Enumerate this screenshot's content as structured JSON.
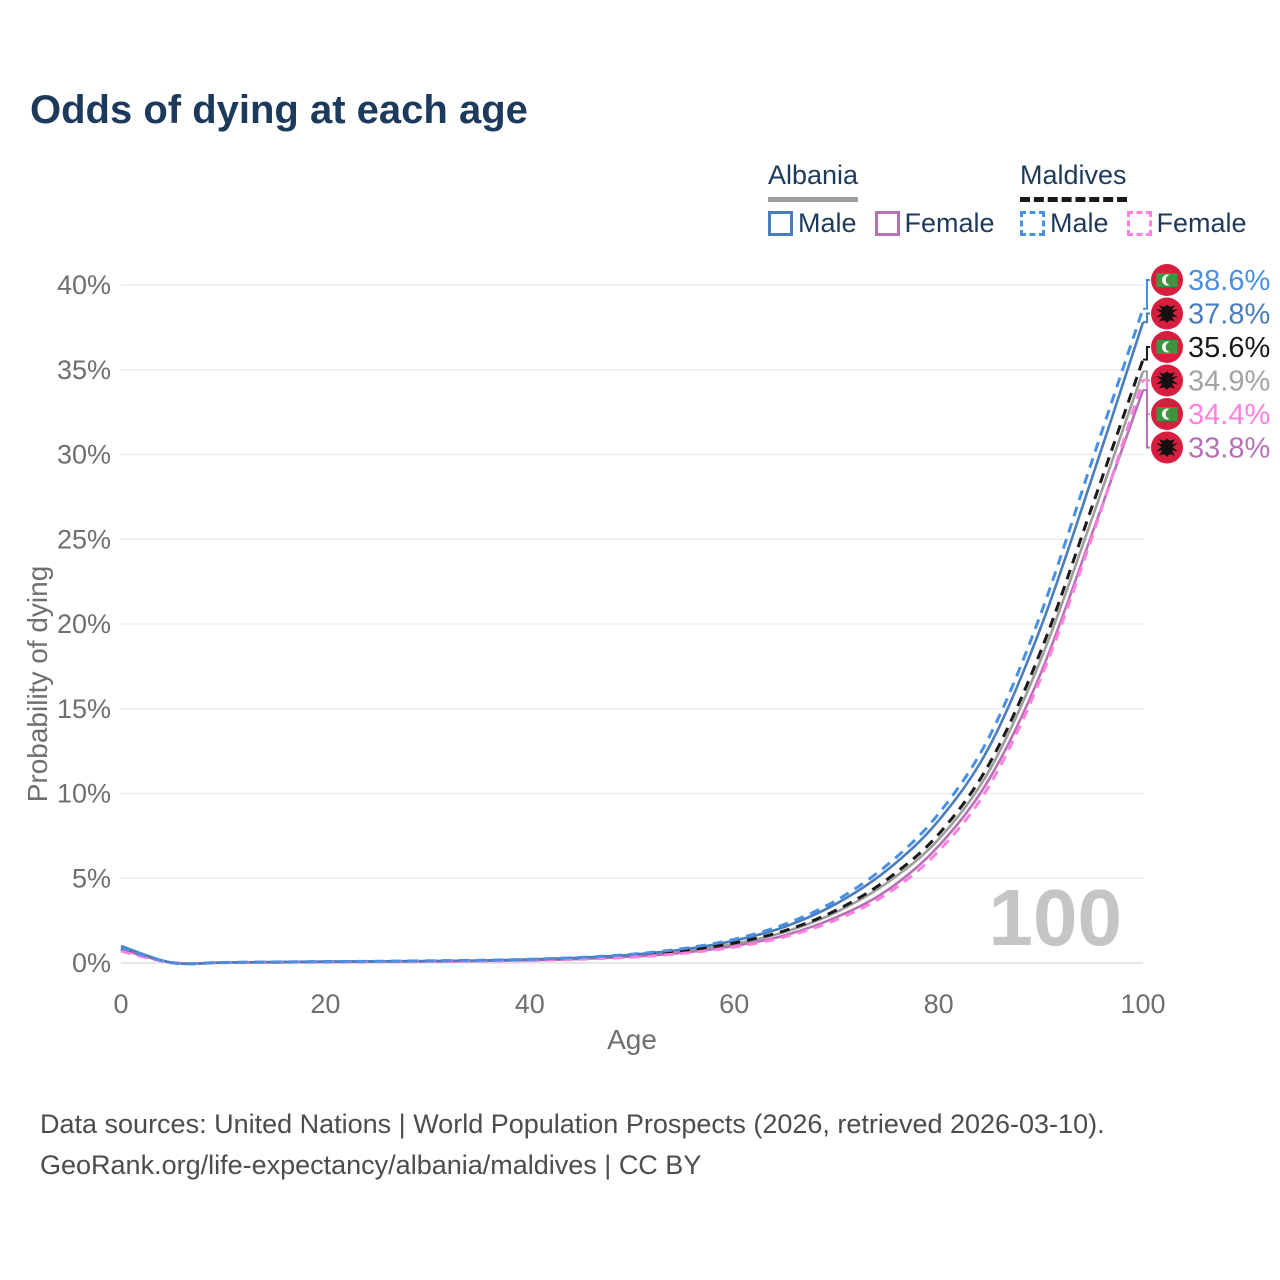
{
  "title": "Odds of dying at each age",
  "legend": {
    "groups": [
      {
        "name": "Albania",
        "line_style": "solid",
        "underline_color": "#9e9e9e",
        "items": [
          {
            "label": "Male",
            "color": "#4a7dbb"
          },
          {
            "label": "Female",
            "color": "#b671b6"
          }
        ]
      },
      {
        "name": "Maldives",
        "line_style": "dashed",
        "underline_color": "#1a1a1a",
        "items": [
          {
            "label": "Male",
            "color": "#4a90e2"
          },
          {
            "label": "Female",
            "color": "#ff80e0"
          }
        ]
      }
    ]
  },
  "chart_data": {
    "type": "line",
    "title": "Odds of dying at each age",
    "xlabel": "Age",
    "ylabel": "Probability of dying",
    "xlim": [
      0,
      100
    ],
    "ylim_percent": [
      0,
      40
    ],
    "x_ticks": [
      0,
      20,
      40,
      60,
      80,
      100
    ],
    "y_ticks_percent": [
      0,
      5,
      10,
      15,
      20,
      25,
      30,
      35,
      40
    ],
    "grid": "horizontal",
    "legend_position": "top-right",
    "x": [
      0,
      5,
      10,
      15,
      20,
      25,
      30,
      35,
      40,
      45,
      50,
      55,
      60,
      65,
      70,
      75,
      80,
      85,
      90,
      95,
      100
    ],
    "series": [
      {
        "name": "Albania Both sexes",
        "country": "albania",
        "sex": "both",
        "dash": false,
        "color": "#9e9e9e",
        "label_color": "#a3a3a3",
        "end_label": "34.9%",
        "values": [
          0.9,
          0.02,
          0.03,
          0.05,
          0.07,
          0.09,
          0.1,
          0.13,
          0.18,
          0.27,
          0.42,
          0.69,
          1.13,
          1.84,
          3.0,
          4.75,
          7.3,
          11.4,
          17.9,
          26.2,
          34.9
        ]
      },
      {
        "name": "Albania Female",
        "country": "albania",
        "sex": "female",
        "dash": false,
        "color": "#b671b6",
        "label_color": "#b671b6",
        "end_label": "33.8%",
        "values": [
          0.8,
          0.015,
          0.02,
          0.04,
          0.06,
          0.08,
          0.09,
          0.12,
          0.16,
          0.24,
          0.38,
          0.61,
          1.0,
          1.64,
          2.7,
          4.3,
          6.9,
          10.9,
          17.1,
          25.3,
          33.8
        ]
      },
      {
        "name": "Albania Male",
        "country": "albania",
        "sex": "male",
        "dash": false,
        "color": "#4a7dbb",
        "label_color": "#4a7dbb",
        "end_label": "37.8%",
        "values": [
          1.0,
          0.02,
          0.03,
          0.06,
          0.08,
          0.1,
          0.12,
          0.15,
          0.21,
          0.31,
          0.49,
          0.8,
          1.32,
          2.15,
          3.5,
          5.5,
          8.4,
          12.8,
          19.8,
          28.6,
          37.8
        ]
      },
      {
        "name": "Maldives Both sexes",
        "country": "maldives",
        "sex": "both",
        "dash": true,
        "color": "#1a1a1a",
        "label_color": "#1a1a1a",
        "end_label": "35.6%",
        "values": [
          0.8,
          0.02,
          0.03,
          0.05,
          0.07,
          0.09,
          0.11,
          0.14,
          0.19,
          0.28,
          0.44,
          0.72,
          1.18,
          1.92,
          3.12,
          4.95,
          7.6,
          11.8,
          18.4,
          26.9,
          35.6
        ]
      },
      {
        "name": "Maldives Female",
        "country": "maldives",
        "sex": "female",
        "dash": true,
        "color": "#ff80e0",
        "label_color": "#ff80e0",
        "end_label": "34.4%",
        "values": [
          0.7,
          0.015,
          0.02,
          0.04,
          0.05,
          0.07,
          0.09,
          0.11,
          0.15,
          0.22,
          0.35,
          0.57,
          0.94,
          1.55,
          2.55,
          4.1,
          6.6,
          10.5,
          16.8,
          25.1,
          34.4
        ]
      },
      {
        "name": "Maldives Male",
        "country": "maldives",
        "sex": "male",
        "dash": true,
        "color": "#4a90e2",
        "label_color": "#4a90e2",
        "end_label": "38.6%",
        "values": [
          0.9,
          0.02,
          0.03,
          0.06,
          0.08,
          0.1,
          0.13,
          0.16,
          0.22,
          0.33,
          0.52,
          0.85,
          1.4,
          2.3,
          3.7,
          5.8,
          8.8,
          13.4,
          20.6,
          29.6,
          38.6
        ]
      }
    ]
  },
  "end_labels_top_to_bottom": [
    {
      "flag": "maldives",
      "value": "38.6%"
    },
    {
      "flag": "albania",
      "value": "37.8%"
    },
    {
      "flag": "maldives",
      "value": "35.6%"
    },
    {
      "flag": "albania",
      "value": "34.9%"
    },
    {
      "flag": "maldives",
      "value": "34.4%"
    },
    {
      "flag": "albania",
      "value": "33.8%"
    }
  ],
  "watermark": "100",
  "flag_colors": {
    "disc_red": "#d81e3f",
    "maldives_green": "#3f9440",
    "eagle_black": "#111111",
    "crescent_white": "#ffffff"
  },
  "axis_colors": {
    "tick_text": "#6f6f6f",
    "gridline": "#ebebeb",
    "baseline": "#dedede",
    "watermark": "#c5c5c5"
  },
  "footer": {
    "line1": "Data sources: United Nations | World Population Prospects (2026, retrieved 2026-03-10).",
    "line2": "GeoRank.org/life-expectancy/albania/maldives | CC BY"
  }
}
